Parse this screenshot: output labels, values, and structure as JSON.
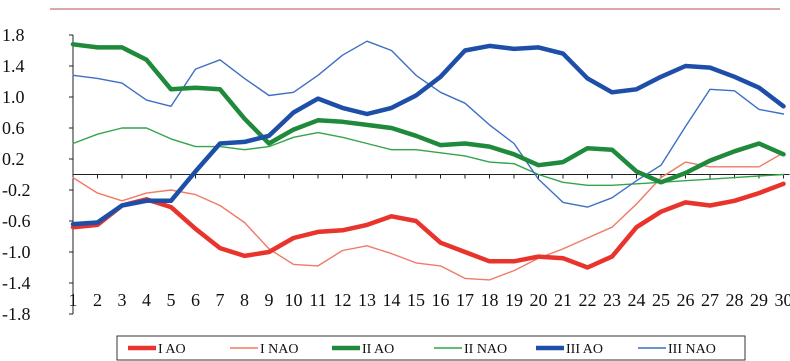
{
  "chart_data": {
    "type": "line",
    "x": [
      1,
      2,
      3,
      4,
      5,
      6,
      7,
      8,
      9,
      10,
      11,
      12,
      13,
      14,
      15,
      16,
      17,
      18,
      19,
      20,
      21,
      22,
      23,
      24,
      25,
      26,
      27,
      28,
      29,
      30
    ],
    "ylim": [
      -1.8,
      1.8
    ],
    "yticks": [
      "1.8",
      "1.4",
      "1.0",
      "0.6",
      "0.2",
      "-0.2",
      "-0.6",
      "-1.0",
      "-1.4",
      "-1.8"
    ],
    "grid": false,
    "legend_position": "bottom",
    "series": [
      {
        "name": "I AO",
        "color": "#e8342c",
        "weight": "bold",
        "values": [
          -0.68,
          -0.65,
          -0.4,
          -0.32,
          -0.42,
          -0.7,
          -0.95,
          -1.05,
          -1.0,
          -0.82,
          -0.74,
          -0.72,
          -0.65,
          -0.54,
          -0.6,
          -0.88,
          -1.0,
          -1.12,
          -1.12,
          -1.06,
          -1.08,
          -1.2,
          -1.06,
          -0.68,
          -0.48,
          -0.36,
          -0.4,
          -0.34,
          -0.24,
          -0.12
        ]
      },
      {
        "name": "I NAO",
        "color": "#f07a66",
        "weight": "thin",
        "values": [
          -0.04,
          -0.24,
          -0.34,
          -0.24,
          -0.2,
          -0.26,
          -0.4,
          -0.62,
          -0.96,
          -1.16,
          -1.18,
          -0.98,
          -0.92,
          -1.02,
          -1.14,
          -1.18,
          -1.34,
          -1.36,
          -1.24,
          -1.08,
          -0.96,
          -0.82,
          -0.68,
          -0.38,
          -0.04,
          0.16,
          0.1,
          0.1,
          0.1,
          0.28
        ]
      },
      {
        "name": "II AO",
        "color": "#1f8a3c",
        "weight": "bold",
        "values": [
          1.68,
          1.64,
          1.64,
          1.48,
          1.1,
          1.12,
          1.1,
          0.72,
          0.4,
          0.58,
          0.7,
          0.68,
          0.64,
          0.6,
          0.5,
          0.38,
          0.4,
          0.36,
          0.26,
          0.12,
          0.16,
          0.34,
          0.32,
          0.04,
          -0.1,
          0.02,
          0.18,
          0.3,
          0.4,
          0.26
        ]
      },
      {
        "name": "II NAO",
        "color": "#34a44a",
        "weight": "thin",
        "values": [
          0.4,
          0.52,
          0.6,
          0.6,
          0.46,
          0.36,
          0.36,
          0.32,
          0.36,
          0.48,
          0.54,
          0.48,
          0.4,
          0.32,
          0.32,
          0.28,
          0.24,
          0.16,
          0.14,
          0.0,
          -0.1,
          -0.14,
          -0.14,
          -0.12,
          -0.1,
          -0.08,
          -0.06,
          -0.04,
          -0.02,
          0.0
        ]
      },
      {
        "name": "III AO",
        "color": "#1e4fa8",
        "weight": "bold",
        "values": [
          -0.64,
          -0.62,
          -0.4,
          -0.34,
          -0.34,
          0.04,
          0.4,
          0.42,
          0.5,
          0.8,
          0.98,
          0.86,
          0.78,
          0.86,
          1.02,
          1.26,
          1.6,
          1.66,
          1.62,
          1.64,
          1.56,
          1.24,
          1.06,
          1.1,
          1.26,
          1.4,
          1.38,
          1.26,
          1.12,
          0.88
        ]
      },
      {
        "name": "III NAO",
        "color": "#3d6fc4",
        "weight": "thin",
        "values": [
          1.28,
          1.24,
          1.18,
          0.96,
          0.88,
          1.36,
          1.48,
          1.24,
          1.02,
          1.06,
          1.28,
          1.54,
          1.72,
          1.6,
          1.28,
          1.06,
          0.92,
          0.64,
          0.4,
          -0.06,
          -0.36,
          -0.42,
          -0.3,
          -0.08,
          0.12,
          0.62,
          1.1,
          1.08,
          0.84,
          0.78
        ]
      }
    ]
  }
}
